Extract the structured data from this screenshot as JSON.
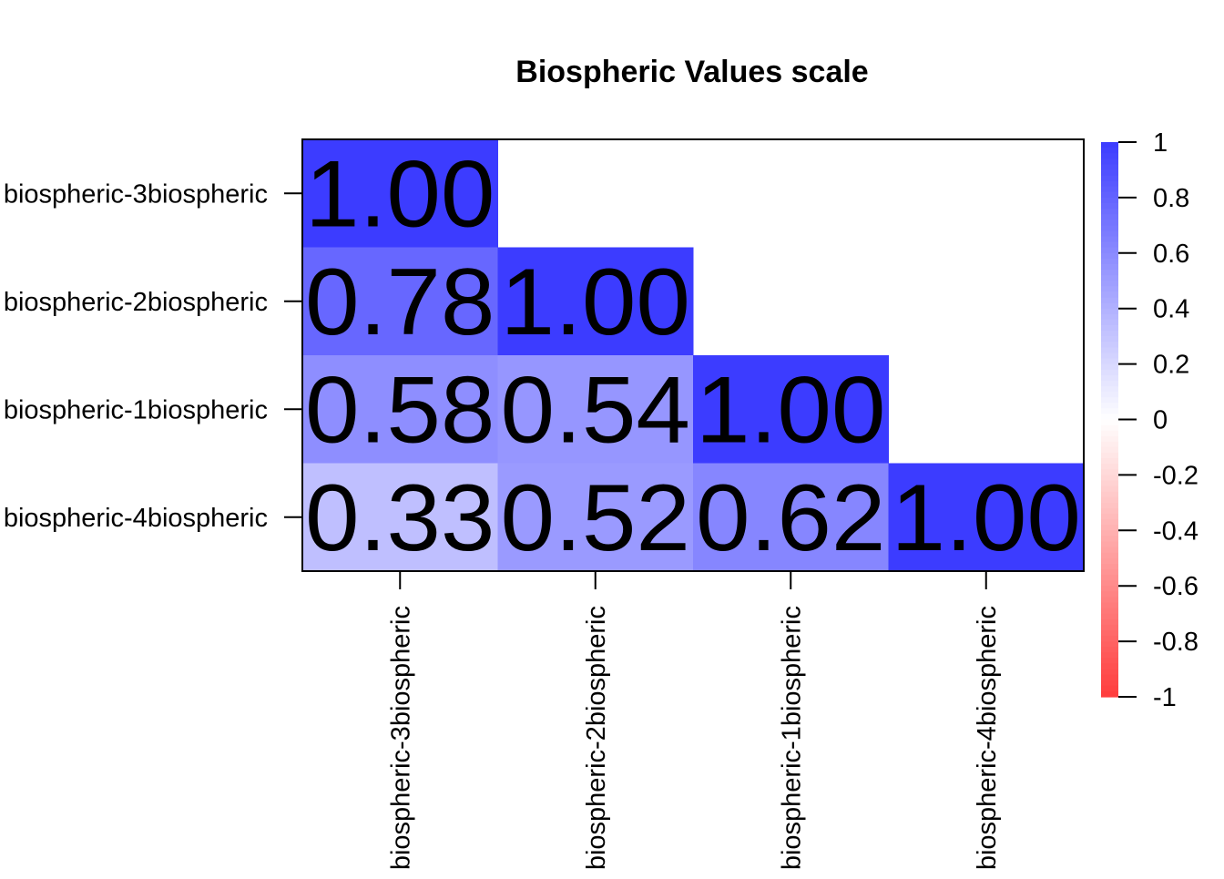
{
  "chart_data": {
    "type": "heatmap",
    "title": "Biospheric Values scale",
    "labels": [
      "biospheric-3biospheric",
      "biospheric-2biospheric",
      "biospheric-1biospheric",
      "biospheric-4biospheric"
    ],
    "matrix": [
      [
        1.0,
        null,
        null,
        null
      ],
      [
        0.78,
        1.0,
        null,
        null
      ],
      [
        0.58,
        0.54,
        1.0,
        null
      ],
      [
        0.33,
        0.52,
        0.62,
        1.0
      ]
    ],
    "cell_text": [
      [
        "1.00",
        "",
        "",
        ""
      ],
      [
        "0.78",
        "1.00",
        "",
        ""
      ],
      [
        "0.58",
        "0.54",
        "1.00",
        ""
      ],
      [
        "0.33",
        "0.52",
        "0.62",
        "1.00"
      ]
    ],
    "triangle": "lower",
    "colorbar": {
      "ticks": [
        1,
        0.8,
        0.6,
        0.4,
        0.2,
        0,
        -0.2,
        -0.4,
        -0.6,
        -0.8,
        -1
      ],
      "tick_labels": [
        "1",
        "0.8",
        "0.6",
        "0.4",
        "0.2",
        "0",
        "-0.2",
        "-0.4",
        "-0.6",
        "-0.8",
        "-1"
      ],
      "range": [
        -1,
        1
      ],
      "colors": {
        "low": "#ff3c3c",
        "mid": "#ffffff",
        "high": "#3c3cff"
      }
    }
  }
}
